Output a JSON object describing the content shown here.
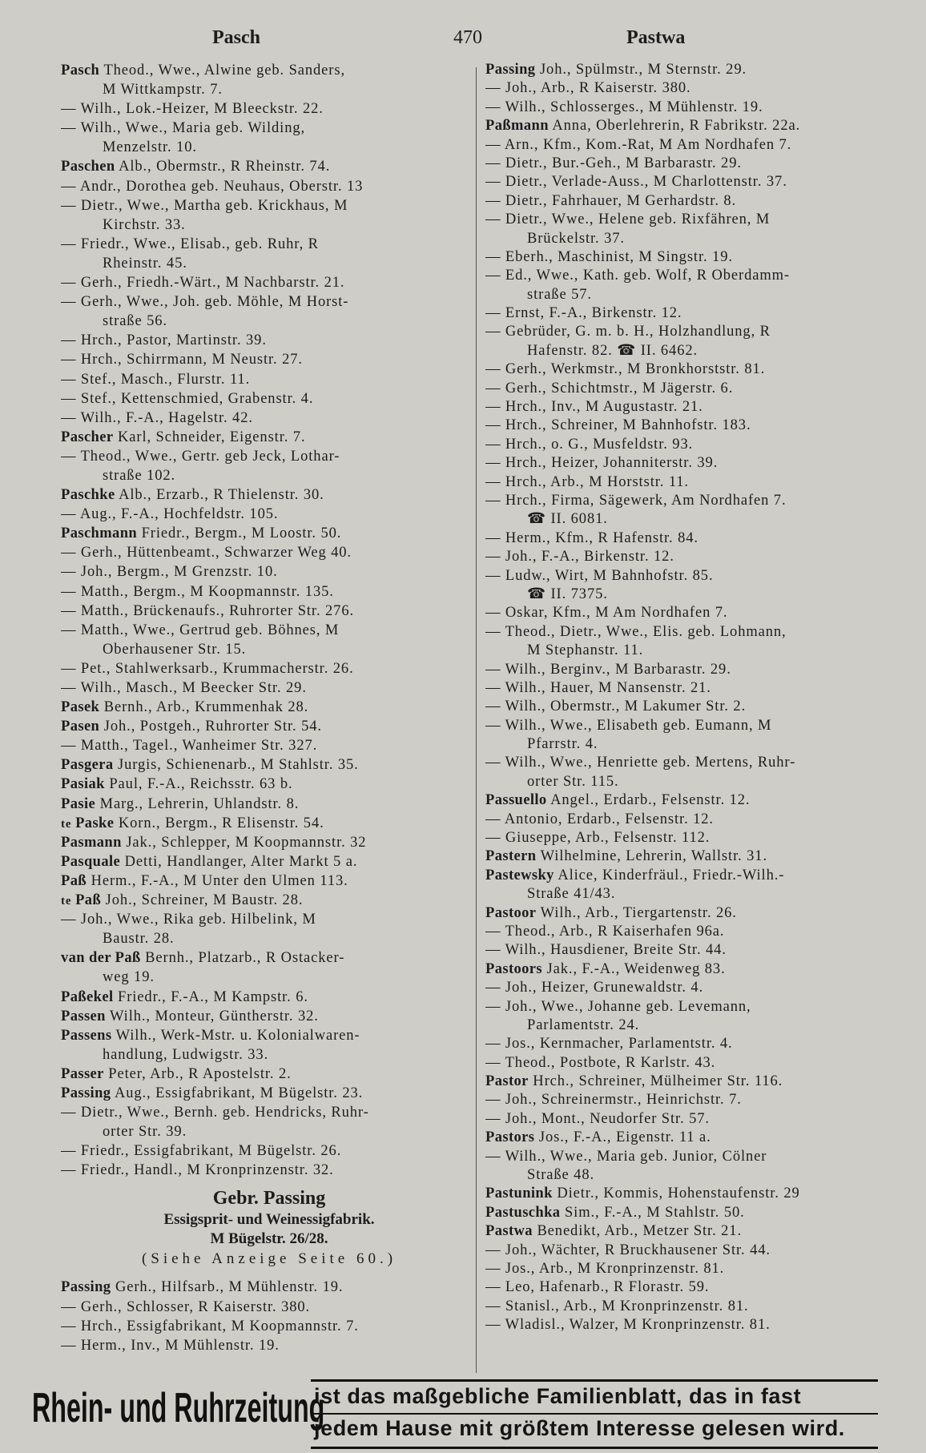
{
  "header": {
    "left": "Pasch",
    "page": "470",
    "right": "Pastwa"
  },
  "left_column": [
    {
      "b": "Pasch",
      "t": " Theod., Wwe., Alwine geb. Sanders,"
    },
    {
      "i": 1,
      "t": "M Wittkampstr. 7."
    },
    {
      "t": "— Wilh., Lok.-Heizer, M Bleeckstr. 22."
    },
    {
      "t": "— Wilh., Wwe., Maria geb. Wilding,"
    },
    {
      "i": 1,
      "t": "Menzelstr. 10."
    },
    {
      "b": "Paschen",
      "t": " Alb., Obermstr., R Rheinstr. 74."
    },
    {
      "t": "— Andr., Dorothea geb. Neuhaus, Oberstr. 13"
    },
    {
      "t": "— Dietr., Wwe., Martha geb. Krickhaus, M"
    },
    {
      "i": 1,
      "t": "Kirchstr. 33."
    },
    {
      "t": "— Friedr., Wwe., Elisab., geb. Ruhr, R"
    },
    {
      "i": 1,
      "t": "Rheinstr. 45."
    },
    {
      "t": "— Gerh., Friedh.-Wärt., M Nachbarstr. 21."
    },
    {
      "t": "— Gerh., Wwe., Joh. geb. Möhle, M Horst-"
    },
    {
      "i": 1,
      "t": "straße 56."
    },
    {
      "t": "— Hrch., Pastor, Martinstr. 39."
    },
    {
      "t": "— Hrch., Schirrmann, M Neustr. 27."
    },
    {
      "t": "— Stef., Masch., Flurstr. 11."
    },
    {
      "t": "— Stef., Kettenschmied, Grabenstr. 4."
    },
    {
      "t": "— Wilh., F.-A., Hagelstr. 42."
    },
    {
      "b": "Pascher",
      "t": " Karl, Schneider, Eigenstr. 7."
    },
    {
      "t": "— Theod., Wwe., Gertr. geb Jeck, Lothar-"
    },
    {
      "i": 1,
      "t": "straße 102."
    },
    {
      "b": "Paschke",
      "t": " Alb., Erzarb., R Thielenstr. 30."
    },
    {
      "t": "— Aug., F.-A., Hochfeldstr. 105."
    },
    {
      "b": "Paschmann",
      "t": " Friedr., Bergm., M Loostr. 50."
    },
    {
      "t": "— Gerh., Hüttenbeamt., Schwarzer Weg 40."
    },
    {
      "t": "— Joh., Bergm., M Grenzstr. 10."
    },
    {
      "t": "— Matth., Bergm., M Koopmannstr. 135."
    },
    {
      "t": "— Matth., Brückenaufs., Ruhrorter Str. 276."
    },
    {
      "t": "— Matth., Wwe., Gertrud geb. Böhnes, M"
    },
    {
      "i": 1,
      "t": "Oberhausener Str. 15."
    },
    {
      "t": "— Pet., Stahlwerksarb., Krummacherstr. 26."
    },
    {
      "t": "— Wilh., Masch., M Beecker Str. 29."
    },
    {
      "b": "Pasek",
      "t": " Bernh., Arb., Krummenhak 28."
    },
    {
      "b": "Pasen",
      "t": " Joh., Postgeh., Ruhrorter Str. 54."
    },
    {
      "t": "— Matth., Tagel., Wanheimer Str. 327."
    },
    {
      "b": "Pasgera",
      "t": " Jurgis, Schienenarb., M Stahlstr. 35."
    },
    {
      "b": "Pasiak",
      "t": " Paul, F.-A., Reichsstr. 63 b."
    },
    {
      "b": "Pasie",
      "t": " Marg., Lehrerin, Uhlandstr. 8."
    },
    {
      "p": "te ",
      "b": "Paske",
      "t": " Korn., Bergm., R Elisenstr. 54."
    },
    {
      "b": "Pasmann",
      "t": " Jak., Schlepper, M Koopmannstr. 32"
    },
    {
      "b": "Pasquale",
      "t": " Detti, Handlanger, Alter Markt 5 a."
    },
    {
      "b": "Paß",
      "t": " Herm., F.-A., M Unter den Ulmen 113."
    },
    {
      "p": "te ",
      "b": "Paß",
      "t": " Joh., Schreiner, M Baustr. 28."
    },
    {
      "t": "— Joh., Wwe., Rika geb. Hilbelink, M"
    },
    {
      "i": 1,
      "t": "Baustr. 28."
    },
    {
      "b": "van der Paß",
      "t": " Bernh., Platzarb., R Ostacker-"
    },
    {
      "i": 1,
      "t": "weg 19."
    },
    {
      "b": "Paßekel",
      "t": " Friedr., F.-A., M Kampstr. 6."
    },
    {
      "b": "Passen",
      "t": " Wilh., Monteur, Güntherstr. 32."
    },
    {
      "b": "Passens",
      "t": " Wilh., Werk-Mstr. u. Kolonialwaren-"
    },
    {
      "i": 1,
      "t": "handlung, Ludwigstr. 33."
    },
    {
      "b": "Passer",
      "t": " Peter, Arb., R Apostelstr. 2."
    },
    {
      "b": "Passing",
      "t": " Aug., Essigfabrikant, M Bügelstr. 23."
    },
    {
      "t": "— Dietr., Wwe., Bernh. geb. Hendricks, Ruhr-"
    },
    {
      "i": 1,
      "t": "orter Str. 39."
    },
    {
      "t": "— Friedr., Essigfabrikant, M Bügelstr. 26."
    },
    {
      "t": "— Friedr., Handl., M Kronprinzenstr. 32."
    }
  ],
  "advert": {
    "firm": "Gebr. Passing",
    "business": "Essigsprit- und Weinessigfabrik.",
    "address": "M Bügelstr. 26/28.",
    "note": "(Siehe Anzeige Seite 60.)"
  },
  "left_column_after": [
    {
      "b": "Passing",
      "t": " Gerh., Hilfsarb., M Mühlenstr. 19."
    },
    {
      "t": "— Gerh., Schlosser, R Kaiserstr. 380."
    },
    {
      "t": "— Hrch., Essigfabrikant, M Koopmannstr. 7."
    },
    {
      "t": "— Herm., Inv., M Mühlenstr. 19."
    }
  ],
  "right_column": [
    {
      "b": "Passing",
      "t": " Joh., Spülmstr., M Sternstr. 29."
    },
    {
      "t": "— Joh., Arb., R Kaiserstr. 380."
    },
    {
      "t": "— Wilh., Schlosserges., M Mühlenstr. 19."
    },
    {
      "b": "Paßmann",
      "t": " Anna, Oberlehrerin, R Fabrikstr. 22a."
    },
    {
      "t": "— Arn., Kfm., Kom.-Rat, M Am Nordhafen 7."
    },
    {
      "t": "— Dietr., Bur.-Geh., M Barbarastr. 29."
    },
    {
      "t": "— Dietr., Verlade-Auss., M Charlottenstr. 37."
    },
    {
      "t": "— Dietr., Fahrhauer, M Gerhardstr. 8."
    },
    {
      "t": "— Dietr., Wwe., Helene geb. Rixfähren, M"
    },
    {
      "i": 1,
      "t": "Brückelstr. 37."
    },
    {
      "t": "— Eberh., Maschinist, M Singstr. 19."
    },
    {
      "t": "— Ed., Wwe., Kath. geb. Wolf, R Oberdamm-"
    },
    {
      "i": 1,
      "t": "straße 57."
    },
    {
      "t": "— Ernst, F.-A., Birkenstr. 12."
    },
    {
      "t": "— Gebrüder, G. m. b. H., Holzhandlung, R"
    },
    {
      "i": 1,
      "t": "Hafenstr. 82. ☎ II. 6462."
    },
    {
      "t": "— Gerh., Werkmstr., M Bronkhorststr. 81."
    },
    {
      "t": "— Gerh., Schichtmstr., M Jägerstr. 6."
    },
    {
      "t": "— Hrch., Inv., M Augustastr. 21."
    },
    {
      "t": "— Hrch., Schreiner, M Bahnhofstr. 183."
    },
    {
      "t": "— Hrch., o. G., Musfeldstr. 93."
    },
    {
      "t": "— Hrch., Heizer, Johanniterstr. 39."
    },
    {
      "t": "— Hrch., Arb., M Horststr. 11."
    },
    {
      "t": "— Hrch., Firma, Sägewerk, Am Nordhafen 7."
    },
    {
      "i": 1,
      "t": "☎ II. 6081."
    },
    {
      "t": "— Herm., Kfm., R Hafenstr. 84."
    },
    {
      "t": "— Joh., F.-A., Birkenstr. 12."
    },
    {
      "t": "— Ludw., Wirt, M Bahnhofstr. 85."
    },
    {
      "i": 1,
      "t": "☎ II. 7375."
    },
    {
      "t": "— Oskar, Kfm., M Am Nordhafen 7."
    },
    {
      "t": "— Theod., Dietr., Wwe., Elis. geb. Lohmann,"
    },
    {
      "i": 1,
      "t": "M Stephanstr. 11."
    },
    {
      "t": "— Wilh., Berginv., M Barbarastr. 29."
    },
    {
      "t": "— Wilh., Hauer, M Nansenstr. 21."
    },
    {
      "t": "— Wilh., Obermstr., M Lakumer Str. 2."
    },
    {
      "t": "— Wilh., Wwe., Elisabeth geb. Eumann, M"
    },
    {
      "i": 1,
      "t": "Pfarrstr. 4."
    },
    {
      "t": "— Wilh., Wwe., Henriette geb. Mertens, Ruhr-"
    },
    {
      "i": 1,
      "t": "orter Str. 115."
    },
    {
      "b": "Passuello",
      "t": " Angel., Erdarb., Felsenstr. 12."
    },
    {
      "t": "— Antonio, Erdarb., Felsenstr. 12."
    },
    {
      "t": "— Giuseppe, Arb., Felsenstr. 112."
    },
    {
      "b": "Pastern",
      "t": " Wilhelmine, Lehrerin, Wallstr. 31."
    },
    {
      "b": "Pastewsky",
      "t": " Alice, Kinderfräul., Friedr.-Wilh.-"
    },
    {
      "i": 1,
      "t": "Straße 41/43."
    },
    {
      "b": "Pastoor",
      "t": " Wilh., Arb., Tiergartenstr. 26."
    },
    {
      "t": "— Theod., Arb., R Kaiserhafen 96a."
    },
    {
      "t": "— Wilh., Hausdiener, Breite Str. 44."
    },
    {
      "b": "Pastoors",
      "t": " Jak., F.-A., Weidenweg 83."
    },
    {
      "t": "— Joh., Heizer, Grunewaldstr. 4."
    },
    {
      "t": "— Joh., Wwe., Johanne geb. Levemann,"
    },
    {
      "i": 1,
      "t": "Parlamentstr. 24."
    },
    {
      "t": "— Jos., Kernmacher, Parlamentstr. 4."
    },
    {
      "t": "— Theod., Postbote, R Karlstr. 43."
    },
    {
      "b": "Pastor",
      "t": " Hrch., Schreiner, Mülheimer Str. 116."
    },
    {
      "t": "— Joh., Schreinermstr., Heinrichstr. 7."
    },
    {
      "t": "— Joh., Mont., Neudorfer Str. 57."
    },
    {
      "b": "Pastors",
      "t": " Jos., F.-A., Eigenstr. 11 a."
    },
    {
      "t": "— Wilh., Wwe., Maria geb. Junior, Cölner"
    },
    {
      "i": 1,
      "t": "Straße 48."
    },
    {
      "b": "Pastunink",
      "t": " Dietr., Kommis, Hohenstaufenstr. 29"
    },
    {
      "b": "Pastuschka",
      "t": " Sim., F.-A., M Stahlstr. 50."
    },
    {
      "b": "Pastwa",
      "t": " Benedikt, Arb., Metzer Str. 21."
    },
    {
      "t": "— Joh., Wächter, R Bruckhausener Str. 44."
    },
    {
      "t": "— Jos., Arb., M Kronprinzenstr. 81."
    },
    {
      "t": "— Leo, Hafenarb., R Florastr. 59."
    },
    {
      "t": "— Stanisl., Arb., M Kronprinzenstr. 81."
    },
    {
      "t": "— Wladisl., Walzer, M Kronprinzenstr. 81."
    }
  ],
  "footer": {
    "newspaper": "Rhein- und Ruhrzeitung",
    "line1": "ist das maßgebliche Familienblatt, das in fast",
    "line2": "jedem Hause mit größtem Interesse gelesen wird."
  }
}
